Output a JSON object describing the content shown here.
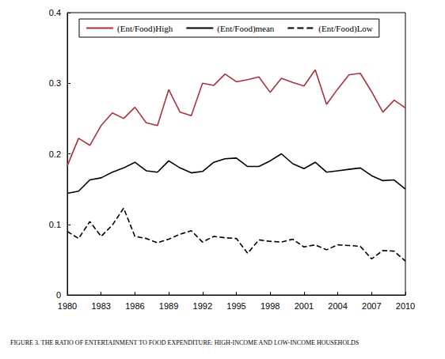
{
  "chart_data": {
    "type": "line",
    "title": "FIGURE 3. THE RATIO OF ENTERTAINMENT TO FOOD EXPENDITURE: HIGH-INCOME AND LOW-INCOME HOUSEHOLDS",
    "x": [
      1980,
      1981,
      1982,
      1983,
      1984,
      1985,
      1986,
      1987,
      1988,
      1989,
      1990,
      1991,
      1992,
      1993,
      1994,
      1995,
      1996,
      1997,
      1998,
      1999,
      2000,
      2001,
      2002,
      2003,
      2004,
      2005,
      2006,
      2007,
      2008,
      2009,
      2010
    ],
    "series": [
      {
        "name": "(Ent/Food)High",
        "color": "#a8323e",
        "line_style": "solid",
        "values": [
          0.183,
          0.222,
          0.212,
          0.24,
          0.258,
          0.25,
          0.266,
          0.244,
          0.24,
          0.291,
          0.259,
          0.254,
          0.3,
          0.297,
          0.313,
          0.302,
          0.305,
          0.309,
          0.287,
          0.307,
          0.301,
          0.296,
          0.319,
          0.27,
          0.292,
          0.312,
          0.314,
          0.288,
          0.259,
          0.276,
          0.265
        ]
      },
      {
        "name": "(Ent/Food)mean",
        "color": "#000000",
        "line_style": "solid",
        "values": [
          0.144,
          0.147,
          0.163,
          0.166,
          0.174,
          0.18,
          0.188,
          0.176,
          0.174,
          0.19,
          0.18,
          0.173,
          0.175,
          0.188,
          0.193,
          0.194,
          0.182,
          0.182,
          0.19,
          0.2,
          0.186,
          0.179,
          0.188,
          0.174,
          0.176,
          0.178,
          0.18,
          0.169,
          0.162,
          0.163,
          0.15
        ]
      },
      {
        "name": "(Ent/Food)Low",
        "color": "#000000",
        "line_style": "dashed",
        "values": [
          0.09,
          0.08,
          0.104,
          0.083,
          0.099,
          0.123,
          0.083,
          0.08,
          0.074,
          0.079,
          0.086,
          0.091,
          0.075,
          0.083,
          0.081,
          0.08,
          0.059,
          0.078,
          0.076,
          0.075,
          0.079,
          0.068,
          0.071,
          0.064,
          0.071,
          0.07,
          0.069,
          0.051,
          0.063,
          0.062,
          0.048
        ]
      }
    ],
    "xlim": [
      1980,
      2010
    ],
    "xticks": [
      1980,
      1983,
      1986,
      1989,
      1992,
      1995,
      1998,
      2001,
      2004,
      2007,
      2010
    ],
    "ylim": [
      0,
      0.4
    ],
    "yticks": [
      0,
      0.1,
      0.2,
      0.3,
      0.4
    ],
    "grid": false,
    "legend": "upper left",
    "marker": "none"
  }
}
